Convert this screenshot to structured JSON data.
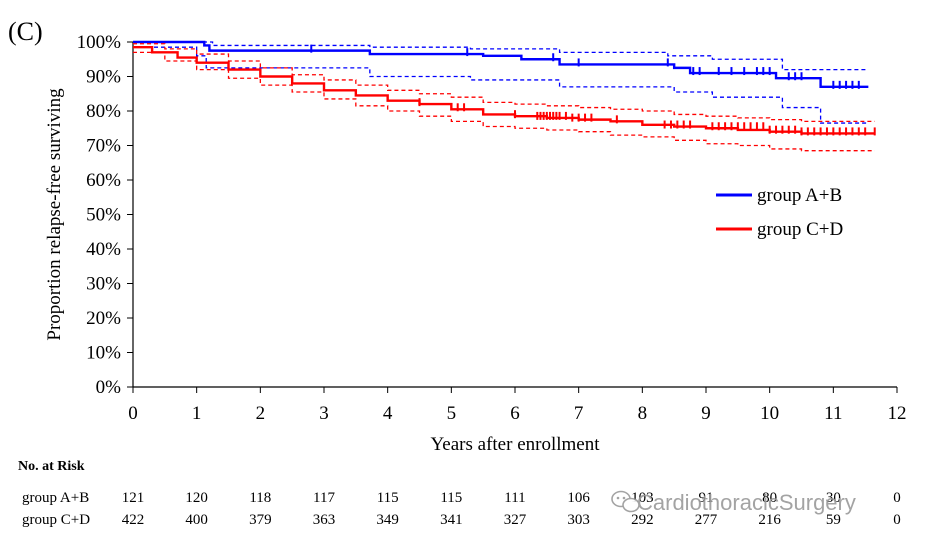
{
  "panel_label": "(C)",
  "colors": {
    "group_ab": "#0000ff",
    "group_cd": "#ff0000",
    "axis": "#000000"
  },
  "chart_data": {
    "type": "line",
    "subtype": "kaplan-meier",
    "title": "",
    "xlabel": "Years after enrollment",
    "ylabel": "Proportion relapse-free surviving",
    "xlim": [
      0,
      12
    ],
    "ylim": [
      0,
      100
    ],
    "x_ticks": [
      0,
      1,
      2,
      3,
      4,
      5,
      6,
      7,
      8,
      9,
      10,
      11,
      12
    ],
    "y_ticks": [
      0,
      10,
      20,
      30,
      40,
      50,
      60,
      70,
      80,
      90,
      100
    ],
    "y_tick_labels": [
      "0%",
      "10%",
      "20%",
      "30%",
      "40%",
      "50%",
      "60%",
      "70%",
      "80%",
      "90%",
      "100%"
    ],
    "legend_position": "right",
    "series": [
      {
        "name": "group A+B",
        "color": "#0000ff",
        "x": [
          0,
          0.55,
          0.6,
          1.05,
          1.12,
          1.2,
          3.7,
          3.72,
          4.6,
          5.0,
          5.2,
          5.5,
          6.0,
          6.1,
          6.6,
          6.7,
          8.3,
          8.5,
          8.7,
          8.75,
          10.05,
          10.1,
          10.75,
          10.8,
          11.55
        ],
        "y": [
          100,
          100,
          100,
          100,
          99,
          97.5,
          97.5,
          96.5,
          96.5,
          96.5,
          96.5,
          96,
          96,
          95,
          95,
          93.5,
          93.5,
          92.5,
          92.5,
          91,
          91,
          89.5,
          89.5,
          87,
          87
        ],
        "ci_lower": {
          "x": [
            0,
            0.95,
            1.0,
            1.15,
            3.7,
            3.72,
            5.2,
            5.3,
            6.6,
            6.7,
            8.4,
            8.5,
            9.0,
            9.1,
            10.1,
            10.2,
            10.7,
            10.8,
            11.55
          ],
          "y": [
            98.5,
            98.5,
            96,
            92.5,
            92.5,
            90,
            90,
            89,
            89,
            87,
            87,
            85.5,
            85.5,
            84,
            84,
            81,
            81,
            76.5,
            76.5
          ]
        },
        "ci_upper": {
          "x": [
            0,
            1.2,
            1.25,
            3.7,
            3.72,
            5.2,
            5.3,
            6.6,
            6.7,
            8.3,
            8.4,
            9.0,
            9.1,
            10.1,
            10.2,
            11.55
          ],
          "y": [
            100,
            100,
            99,
            99,
            98.5,
            98.5,
            98,
            98,
            97,
            97,
            96,
            96,
            95,
            95,
            92,
            92
          ]
        },
        "censor_x": [
          2.8,
          5.25,
          6.6,
          7.0,
          8.4,
          8.8,
          8.9,
          9.2,
          9.4,
          9.6,
          9.8,
          9.9,
          10.0,
          10.3,
          10.4,
          10.5,
          11.0,
          11.1,
          11.2,
          11.3,
          11.4
        ],
        "censor_y": [
          97.5,
          96.5,
          95,
          93.5,
          93.5,
          91,
          91,
          91,
          91,
          91,
          91,
          91,
          91,
          89.5,
          89.5,
          89.5,
          87,
          87,
          87,
          87,
          87
        ]
      },
      {
        "name": "group C+D",
        "color": "#ff0000",
        "x": [
          0,
          0.3,
          0.7,
          1.0,
          1.5,
          2.0,
          2.5,
          3.0,
          3.5,
          4.0,
          4.5,
          5.0,
          5.5,
          6.0,
          6.5,
          7.0,
          7.5,
          8.0,
          8.5,
          9.0,
          9.5,
          10.0,
          10.5,
          11.0,
          11.5,
          11.65
        ],
        "y": [
          98.5,
          97,
          95.5,
          94,
          92,
          90,
          88,
          86,
          84.5,
          83,
          82,
          80.5,
          79,
          78.5,
          78,
          77.5,
          77,
          76,
          75.5,
          75,
          74.5,
          74,
          73.5,
          73.5,
          73.5,
          73.5
        ],
        "ci_lower": {
          "x": [
            0,
            0.5,
            1.0,
            1.5,
            2.0,
            2.5,
            3.0,
            3.5,
            4.0,
            4.5,
            5.0,
            5.5,
            6.0,
            6.5,
            7.0,
            7.5,
            8.0,
            8.5,
            9.0,
            9.5,
            10.0,
            10.5,
            11.0,
            11.65
          ],
          "y": [
            97,
            94.5,
            92,
            89.5,
            87.5,
            85.5,
            83.5,
            81.5,
            80,
            78.5,
            77,
            75.5,
            75,
            74.5,
            74,
            73,
            72.5,
            71.5,
            70.5,
            70,
            69,
            68.5,
            68.5,
            68.5
          ]
        },
        "ci_upper": {
          "x": [
            0,
            0.5,
            1.0,
            1.5,
            2.0,
            2.5,
            3.0,
            3.5,
            4.0,
            4.5,
            5.0,
            5.5,
            6.0,
            6.5,
            7.0,
            7.5,
            8.0,
            8.5,
            9.0,
            9.5,
            10.0,
            10.5,
            11.0,
            11.65
          ],
          "y": [
            99.5,
            98,
            96.5,
            94.5,
            92.5,
            90.5,
            89,
            87.5,
            86,
            85,
            84,
            82.5,
            82,
            81.5,
            81,
            80.5,
            80,
            79,
            78.5,
            78,
            77.5,
            77,
            77,
            77
          ]
        },
        "censor_x": [
          4.5,
          5.1,
          5.2,
          6.0,
          6.35,
          6.4,
          6.45,
          6.5,
          6.55,
          6.6,
          6.65,
          6.7,
          6.8,
          6.9,
          7.0,
          7.1,
          7.2,
          7.6,
          8.35,
          8.45,
          8.55,
          8.65,
          8.75,
          9.1,
          9.2,
          9.3,
          9.4,
          9.5,
          9.6,
          9.7,
          9.8,
          9.9,
          10.0,
          10.1,
          10.2,
          10.3,
          10.4,
          10.5,
          10.6,
          10.7,
          10.8,
          10.9,
          11.0,
          11.1,
          11.2,
          11.3,
          11.4,
          11.5,
          11.65
        ],
        "censor_y": [
          82,
          80.5,
          80.5,
          78.5,
          78,
          78,
          78,
          78,
          78,
          78,
          78,
          78,
          78,
          77.5,
          77.5,
          77.5,
          77.5,
          77,
          75.5,
          75.5,
          75.5,
          75.5,
          75.5,
          75,
          75,
          75,
          75,
          75,
          75,
          75,
          75,
          75,
          74,
          74,
          74,
          74,
          74,
          73.5,
          73.5,
          73.5,
          73.5,
          73.5,
          73.5,
          73.5,
          73.5,
          73.5,
          73.5,
          73.5,
          73.5
        ]
      }
    ],
    "legend": [
      "group A+B",
      "group C+D"
    ]
  },
  "risk_table": {
    "header": "No. at Risk",
    "rows": [
      {
        "label": "group A+B",
        "values": [
          "121",
          "120",
          "118",
          "117",
          "115",
          "115",
          "111",
          "106",
          "103",
          "91",
          "80",
          "30",
          "0"
        ]
      },
      {
        "label": "group C+D",
        "values": [
          "422",
          "400",
          "379",
          "363",
          "349",
          "341",
          "327",
          "303",
          "292",
          "277",
          "216",
          "59",
          "0"
        ]
      }
    ]
  },
  "watermark": {
    "text": "CardiothoracicSurgery",
    "icon": "wechat-icon"
  }
}
